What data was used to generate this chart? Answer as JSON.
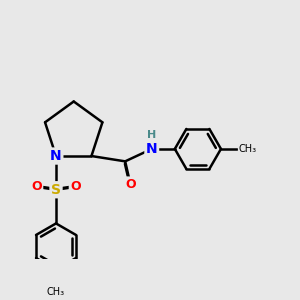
{
  "background_color": "#e8e8e8",
  "bond_color": "#000000",
  "bond_width": 1.8,
  "atom_colors": {
    "N": "#0000ff",
    "O": "#ff0000",
    "S": "#ccaa00",
    "C": "#000000",
    "H": "#4a8a8a"
  },
  "font_size": 9,
  "figsize": [
    3.0,
    3.0
  ]
}
